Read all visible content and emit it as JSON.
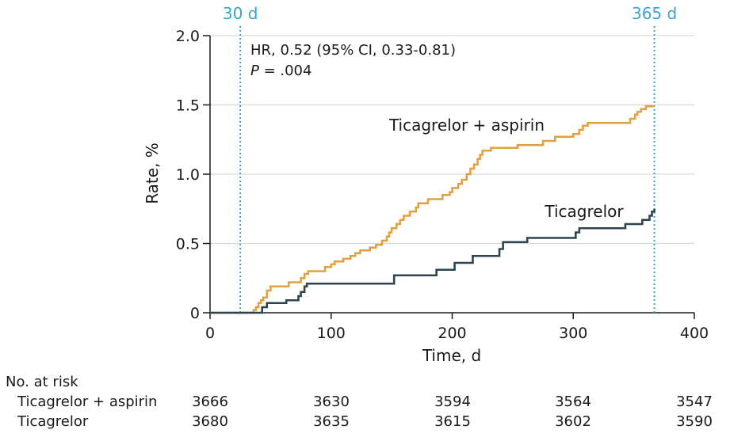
{
  "chart_data": {
    "type": "line",
    "ylabel": "Rate, %",
    "xlabel": "Time, d",
    "xlim": [
      0,
      400
    ],
    "ylim": [
      0,
      2.0
    ],
    "xticks": [
      "0",
      "100",
      "200",
      "300",
      "400"
    ],
    "yticks": [
      "0",
      "0.5",
      "1.0",
      "1.5",
      "2.0"
    ],
    "grid": true,
    "markers": [
      {
        "x": 25,
        "label": "30 d"
      },
      {
        "x": 367,
        "label": "365 d"
      }
    ],
    "annotation": {
      "hr_line": "HR, 0.52 (95% CI, 0.33-0.81)",
      "p_label": "P",
      "p_value": " = .004"
    },
    "series": [
      {
        "name": "Ticagrelor + aspirin",
        "color": "#e3a03f",
        "steps": [
          [
            0,
            0
          ],
          [
            35,
            0
          ],
          [
            36,
            0.02
          ],
          [
            38,
            0.04
          ],
          [
            40,
            0.07
          ],
          [
            42,
            0.09
          ],
          [
            44,
            0.11
          ],
          [
            47,
            0.16
          ],
          [
            50,
            0.19
          ],
          [
            63,
            0.19
          ],
          [
            65,
            0.22
          ],
          [
            72,
            0.22
          ],
          [
            75,
            0.25
          ],
          [
            78,
            0.28
          ],
          [
            81,
            0.3
          ],
          [
            93,
            0.3
          ],
          [
            95,
            0.33
          ],
          [
            100,
            0.35
          ],
          [
            103,
            0.37
          ],
          [
            110,
            0.39
          ],
          [
            116,
            0.41
          ],
          [
            120,
            0.43
          ],
          [
            124,
            0.45
          ],
          [
            132,
            0.47
          ],
          [
            137,
            0.49
          ],
          [
            142,
            0.52
          ],
          [
            146,
            0.55
          ],
          [
            148,
            0.58
          ],
          [
            150,
            0.61
          ],
          [
            154,
            0.64
          ],
          [
            157,
            0.67
          ],
          [
            160,
            0.7
          ],
          [
            165,
            0.73
          ],
          [
            170,
            0.76
          ],
          [
            172,
            0.79
          ],
          [
            180,
            0.82
          ],
          [
            188,
            0.82
          ],
          [
            192,
            0.85
          ],
          [
            198,
            0.87
          ],
          [
            200,
            0.9
          ],
          [
            205,
            0.93
          ],
          [
            208,
            0.96
          ],
          [
            212,
            1.0
          ],
          [
            215,
            1.04
          ],
          [
            218,
            1.07
          ],
          [
            221,
            1.11
          ],
          [
            223,
            1.14
          ],
          [
            225,
            1.17
          ],
          [
            230,
            1.17
          ],
          [
            232,
            1.19
          ],
          [
            252,
            1.19
          ],
          [
            254,
            1.21
          ],
          [
            272,
            1.21
          ],
          [
            275,
            1.24
          ],
          [
            285,
            1.27
          ],
          [
            300,
            1.29
          ],
          [
            305,
            1.32
          ],
          [
            308,
            1.35
          ],
          [
            312,
            1.37
          ],
          [
            345,
            1.37
          ],
          [
            347,
            1.4
          ],
          [
            351,
            1.43
          ],
          [
            353,
            1.45
          ],
          [
            356,
            1.47
          ],
          [
            360,
            1.49
          ],
          [
            367,
            1.49
          ]
        ]
      },
      {
        "name": "Ticagrelor",
        "color": "#2d4550",
        "steps": [
          [
            0,
            0
          ],
          [
            40,
            0
          ],
          [
            43,
            0.04
          ],
          [
            47,
            0.07
          ],
          [
            60,
            0.07
          ],
          [
            63,
            0.09
          ],
          [
            70,
            0.09
          ],
          [
            73,
            0.12
          ],
          [
            75,
            0.15
          ],
          [
            78,
            0.19
          ],
          [
            80,
            0.21
          ],
          [
            150,
            0.21
          ],
          [
            152,
            0.27
          ],
          [
            185,
            0.27
          ],
          [
            187,
            0.31
          ],
          [
            200,
            0.31
          ],
          [
            202,
            0.36
          ],
          [
            215,
            0.36
          ],
          [
            217,
            0.41
          ],
          [
            237,
            0.41
          ],
          [
            239,
            0.46
          ],
          [
            242,
            0.51
          ],
          [
            260,
            0.51
          ],
          [
            262,
            0.54
          ],
          [
            300,
            0.54
          ],
          [
            302,
            0.58
          ],
          [
            305,
            0.61
          ],
          [
            340,
            0.61
          ],
          [
            343,
            0.64
          ],
          [
            355,
            0.64
          ],
          [
            357,
            0.67
          ],
          [
            363,
            0.7
          ],
          [
            365,
            0.73
          ],
          [
            367,
            0.75
          ]
        ]
      }
    ]
  },
  "risk_table": {
    "title": "No. at risk",
    "rows": [
      {
        "label": "Ticagrelor + aspirin",
        "values": [
          "3666",
          "3630",
          "3594",
          "3564",
          "3547"
        ]
      },
      {
        "label": "Ticagrelor",
        "values": [
          "3680",
          "3635",
          "3615",
          "3602",
          "3590"
        ]
      }
    ]
  }
}
